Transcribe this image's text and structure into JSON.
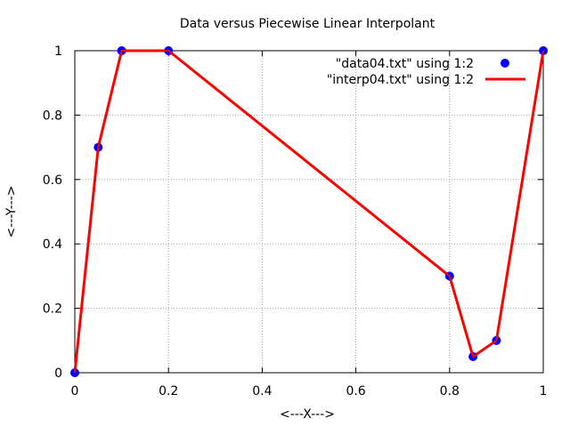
{
  "chart_data": {
    "type": "line",
    "title": "Data versus Piecewise Linear Interpolant",
    "xlabel": "<---X--->",
    "ylabel": "<---Y--->",
    "xlim": [
      0,
      1
    ],
    "ylim": [
      0,
      1
    ],
    "xticks": [
      "0",
      "0.2",
      "0.4",
      "0.6",
      "0.8",
      "1"
    ],
    "yticks": [
      "0",
      "0.2",
      "0.4",
      "0.6",
      "0.8",
      "1"
    ],
    "grid": true,
    "legend_position": "top-right",
    "series": [
      {
        "name": "\"data04.txt\" using 1:2",
        "style": "points",
        "color": "#0000ff",
        "x": [
          0.0,
          0.05,
          0.1,
          0.2,
          0.8,
          0.85,
          0.9,
          1.0
        ],
        "y": [
          0.0,
          0.7,
          1.0,
          1.0,
          0.3,
          0.05,
          0.1,
          1.0
        ]
      },
      {
        "name": "\"interp04.txt\" using 1:2",
        "style": "line",
        "color": "#ff0000",
        "x": [
          0.0,
          0.05,
          0.1,
          0.2,
          0.8,
          0.85,
          0.9,
          1.0
        ],
        "y": [
          0.0,
          0.7,
          1.0,
          1.0,
          0.3,
          0.05,
          0.1,
          1.0
        ]
      }
    ]
  }
}
